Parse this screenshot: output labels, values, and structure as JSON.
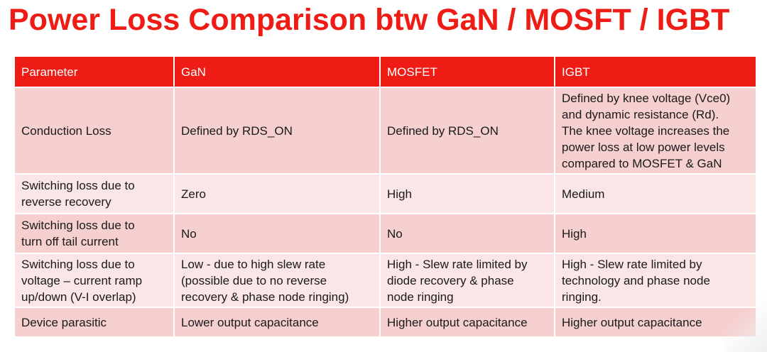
{
  "title": "Power Loss Comparison btw GaN / MOSFT / IGBT",
  "table": {
    "headers": [
      "Parameter",
      "GaN",
      "MOSFET",
      "IGBT"
    ],
    "rows": [
      [
        "Conduction Loss",
        "Defined by RDS_ON",
        "Defined by RDS_ON",
        "Defined by knee voltage (Vce0)\nand dynamic resistance (Rd).\nThe knee voltage increases the\npower loss at low power levels\ncompared to MOSFET & GaN"
      ],
      [
        "Switching loss due to\nreverse recovery",
        "Zero",
        "High",
        "Medium"
      ],
      [
        "Switching loss due to\nturn off tail current",
        "No",
        "No",
        "High"
      ],
      [
        "Switching loss due to\nvoltage – current ramp\nup/down (V-I overlap)",
        "Low - due to high slew rate\n(possible due to no reverse\nrecovery & phase node ringing)",
        "High - Slew rate limited by\ndiode recovery & phase\nnode ringing",
        "High - Slew rate limited by\ntechnology and phase node\nringing."
      ],
      [
        "Device parasitic",
        "Lower output capacitance",
        "Higher output capacitance",
        "Higher output capacitance"
      ]
    ]
  },
  "colors": {
    "title": "#ee1c14",
    "header_bg": "#ee1c14",
    "row_dark": "#f6cfcf",
    "row_light": "#fae6e6"
  }
}
